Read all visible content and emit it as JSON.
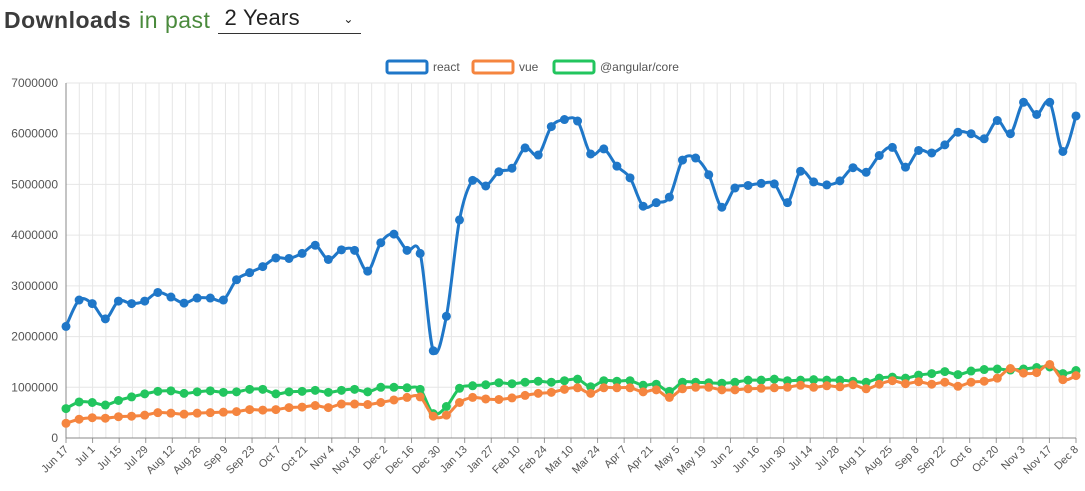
{
  "header": {
    "title": "Downloads",
    "subtitle": "in past",
    "range_value": "2 Years"
  },
  "colors": {
    "react": "#1f77c8",
    "vue": "#f5853f",
    "angular": "#22c55e",
    "grid": "#e6e6e6"
  },
  "chart_data": {
    "type": "line",
    "legend_position": "top-center",
    "grid": true,
    "ylim": [
      0,
      7000000
    ],
    "yticks": [
      0,
      1000000,
      2000000,
      3000000,
      4000000,
      5000000,
      6000000,
      7000000
    ],
    "xticks": [
      "Jun 17",
      "Jul 1",
      "Jul 15",
      "Jul 29",
      "Aug 12",
      "Aug 26",
      "Sep 9",
      "Sep 23",
      "Oct 7",
      "Oct 21",
      "Nov 4",
      "Nov 18",
      "Dec 2",
      "Dec 16",
      "Dec 30",
      "Jan 13",
      "Jan 27",
      "Feb 10",
      "Feb 24",
      "Mar 10",
      "Mar 24",
      "Apr 7",
      "Apr 21",
      "May 5",
      "May 19",
      "Jun 2",
      "Jun 16",
      "Jun 30",
      "Jul 14",
      "Jul 28",
      "Aug 11",
      "Aug 25",
      "Sep 8",
      "Sep 22",
      "Oct 6",
      "Oct 20",
      "Nov 3",
      "Nov 17",
      "Dec 8"
    ],
    "series": [
      {
        "name": "react",
        "values": [
          2200000,
          2720000,
          2650000,
          2350000,
          2700000,
          2650000,
          2700000,
          2870000,
          2780000,
          2660000,
          2760000,
          2760000,
          2720000,
          3120000,
          3260000,
          3380000,
          3550000,
          3540000,
          3640000,
          3800000,
          3520000,
          3710000,
          3700000,
          3290000,
          3850000,
          4020000,
          3700000,
          3640000,
          1720000,
          2400000,
          4300000,
          5080000,
          4970000,
          5250000,
          5320000,
          5720000,
          5580000,
          6140000,
          6280000,
          6250000,
          5600000,
          5700000,
          5360000,
          5130000,
          4570000,
          4640000,
          4750000,
          5480000,
          5520000,
          5190000,
          4550000,
          4930000,
          4980000,
          5020000,
          5010000,
          4640000,
          5260000,
          5050000,
          4990000,
          5070000,
          5330000,
          5240000,
          5570000,
          5730000,
          5340000,
          5670000,
          5620000,
          5780000,
          6030000,
          6000000,
          5900000,
          6260000,
          6000000,
          6620000,
          6380000,
          6620000,
          5650000,
          6350000
        ]
      },
      {
        "name": "vue",
        "values": [
          290000,
          370000,
          400000,
          390000,
          420000,
          430000,
          450000,
          500000,
          490000,
          470000,
          490000,
          500000,
          510000,
          520000,
          560000,
          550000,
          560000,
          600000,
          610000,
          640000,
          600000,
          670000,
          670000,
          660000,
          700000,
          750000,
          800000,
          810000,
          430000,
          450000,
          700000,
          800000,
          770000,
          760000,
          790000,
          840000,
          880000,
          900000,
          960000,
          990000,
          880000,
          990000,
          990000,
          990000,
          910000,
          950000,
          800000,
          970000,
          1000000,
          1000000,
          950000,
          950000,
          970000,
          980000,
          990000,
          1000000,
          1040000,
          1000000,
          1030000,
          1010000,
          1050000,
          970000,
          1060000,
          1130000,
          1070000,
          1110000,
          1060000,
          1100000,
          1020000,
          1100000,
          1120000,
          1180000,
          1370000,
          1280000,
          1290000,
          1450000,
          1150000,
          1230000
        ]
      },
      {
        "name": "@angular/core",
        "values": [
          580000,
          710000,
          700000,
          650000,
          740000,
          810000,
          870000,
          920000,
          930000,
          880000,
          910000,
          930000,
          900000,
          910000,
          960000,
          960000,
          870000,
          910000,
          920000,
          940000,
          900000,
          940000,
          960000,
          910000,
          1000000,
          1000000,
          990000,
          960000,
          480000,
          620000,
          980000,
          1030000,
          1050000,
          1090000,
          1070000,
          1100000,
          1120000,
          1100000,
          1130000,
          1160000,
          1010000,
          1130000,
          1120000,
          1130000,
          1040000,
          1060000,
          920000,
          1100000,
          1100000,
          1090000,
          1080000,
          1100000,
          1140000,
          1140000,
          1160000,
          1130000,
          1140000,
          1150000,
          1140000,
          1140000,
          1120000,
          1100000,
          1180000,
          1200000,
          1180000,
          1240000,
          1270000,
          1310000,
          1250000,
          1320000,
          1350000,
          1360000,
          1340000,
          1360000,
          1390000,
          1400000,
          1270000,
          1330000
        ]
      }
    ]
  }
}
